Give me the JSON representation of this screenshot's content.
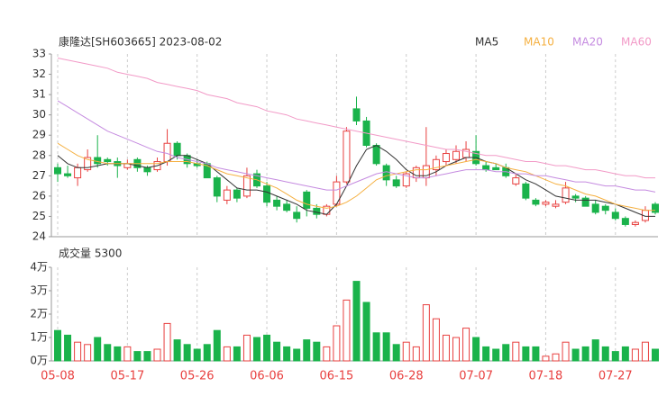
{
  "chart_data": {
    "type": "candlestick",
    "title": "康隆达[SH603665] 2023-08-02",
    "volume_title": "成交量 5300",
    "categories": [
      "05-08",
      null,
      null,
      null,
      null,
      null,
      null,
      "05-17",
      null,
      null,
      null,
      null,
      null,
      null,
      "05-26",
      null,
      null,
      null,
      null,
      null,
      null,
      "06-06",
      null,
      null,
      null,
      null,
      null,
      null,
      "06-15",
      null,
      null,
      null,
      null,
      null,
      null,
      "06-28",
      null,
      null,
      null,
      null,
      null,
      null,
      "07-07",
      null,
      null,
      null,
      null,
      null,
      null,
      "07-18",
      null,
      null,
      null,
      null,
      null,
      null,
      "07-27",
      null,
      null,
      null,
      null
    ],
    "open": [
      27.4,
      27.1,
      26.9,
      27.3,
      27.9,
      27.8,
      27.7,
      27.4,
      27.8,
      27.4,
      27.3,
      27.7,
      28.6,
      28.0,
      27.6,
      27.6,
      26.9,
      25.8,
      26.3,
      26.0,
      27.1,
      26.5,
      25.8,
      25.6,
      25.2,
      26.2,
      25.4,
      25.1,
      25.6,
      26.7,
      30.3,
      29.7,
      28.5,
      27.5,
      26.8,
      26.5,
      26.9,
      26.9,
      27.3,
      27.7,
      27.8,
      27.9,
      28.2,
      27.5,
      27.4,
      27.4,
      26.6,
      26.6,
      25.8,
      25.6,
      25.5,
      25.7,
      26.0,
      25.9,
      25.6,
      25.5,
      25.2,
      24.9,
      24.6,
      24.8,
      25.6
    ],
    "high": [
      27.6,
      27.5,
      27.6,
      28.3,
      29.0,
      27.9,
      27.9,
      27.8,
      27.9,
      27.5,
      27.9,
      29.3,
      28.7,
      28.1,
      27.8,
      27.7,
      27.0,
      26.5,
      26.4,
      27.4,
      27.3,
      26.7,
      26.0,
      25.8,
      25.5,
      26.3,
      25.6,
      25.6,
      27.0,
      29.4,
      30.9,
      29.9,
      28.6,
      27.6,
      27.0,
      27.2,
      27.5,
      29.4,
      28.0,
      28.3,
      28.5,
      28.7,
      29.0,
      27.7,
      27.6,
      27.6,
      27.1,
      26.7,
      25.9,
      25.8,
      25.8,
      26.7,
      26.1,
      26.0,
      25.8,
      25.6,
      25.4,
      25.0,
      24.8,
      25.5,
      25.7
    ],
    "low": [
      26.7,
      26.9,
      26.5,
      27.2,
      27.4,
      27.5,
      26.9,
      27.3,
      27.2,
      27.0,
      27.2,
      27.5,
      27.8,
      27.4,
      27.4,
      26.9,
      25.7,
      25.6,
      25.7,
      25.9,
      26.4,
      25.5,
      25.3,
      25.2,
      24.7,
      25.0,
      24.9,
      25.0,
      25.5,
      26.6,
      29.5,
      28.4,
      27.5,
      26.5,
      26.4,
      26.4,
      26.7,
      26.5,
      27.0,
      27.5,
      27.6,
      27.7,
      27.5,
      27.2,
      27.3,
      26.9,
      26.5,
      25.8,
      25.5,
      25.5,
      25.4,
      25.6,
      25.7,
      25.5,
      25.1,
      25.1,
      24.8,
      24.5,
      24.5,
      24.7,
      25.1
    ],
    "close": [
      27.1,
      27.0,
      27.4,
      27.9,
      27.6,
      27.7,
      27.5,
      27.6,
      27.4,
      27.2,
      27.7,
      28.6,
      28.0,
      27.6,
      27.5,
      26.9,
      26.0,
      26.3,
      25.9,
      27.0,
      26.5,
      25.7,
      25.5,
      25.3,
      24.9,
      25.4,
      25.1,
      25.5,
      26.7,
      29.2,
      29.7,
      28.5,
      27.6,
      26.8,
      26.5,
      27.1,
      27.4,
      27.5,
      27.8,
      28.1,
      28.2,
      28.3,
      27.6,
      27.3,
      27.3,
      27.0,
      26.9,
      25.9,
      25.6,
      25.7,
      25.6,
      26.4,
      25.9,
      25.5,
      25.2,
      25.3,
      24.9,
      24.6,
      24.7,
      25.3,
      25.2
    ],
    "volume": [
      1.3,
      1.1,
      0.8,
      0.7,
      1.0,
      0.7,
      0.6,
      0.6,
      0.4,
      0.4,
      0.5,
      1.6,
      0.9,
      0.7,
      0.5,
      0.7,
      1.3,
      0.6,
      0.6,
      1.1,
      1.0,
      1.1,
      0.8,
      0.6,
      0.5,
      0.9,
      0.8,
      0.6,
      1.5,
      2.6,
      3.4,
      2.5,
      1.2,
      1.2,
      0.7,
      0.8,
      0.6,
      2.4,
      1.8,
      1.1,
      1.0,
      1.4,
      1.0,
      0.6,
      0.5,
      0.7,
      0.8,
      0.6,
      0.6,
      0.2,
      0.3,
      0.8,
      0.5,
      0.6,
      0.9,
      0.6,
      0.4,
      0.6,
      0.5,
      0.8,
      0.5
    ],
    "up_color": "#e8403f",
    "down_color": "#1ab34b",
    "series": [
      {
        "name": "MA5",
        "color": "#333333",
        "values": [
          28.0,
          27.6,
          27.4,
          27.4,
          27.5,
          27.6,
          27.6,
          27.6,
          27.5,
          27.4,
          27.5,
          27.7,
          28.0,
          28.0,
          27.8,
          27.6,
          27.2,
          26.8,
          26.4,
          26.3,
          26.3,
          26.2,
          26.0,
          25.8,
          25.6,
          25.3,
          25.2,
          25.1,
          25.6,
          26.5,
          27.5,
          28.3,
          28.5,
          28.2,
          27.8,
          27.3,
          27.0,
          27.0,
          27.2,
          27.5,
          27.7,
          27.9,
          27.9,
          27.7,
          27.6,
          27.4,
          27.1,
          26.8,
          26.6,
          26.3,
          26.0,
          25.9,
          25.8,
          25.8,
          25.8,
          25.7,
          25.6,
          25.4,
          25.2,
          25.0,
          25.0
        ]
      },
      {
        "name": "MA10",
        "color": "#f5b041",
        "values": [
          28.6,
          28.3,
          28.0,
          27.8,
          27.7,
          27.6,
          27.6,
          27.6,
          27.6,
          27.6,
          27.6,
          27.7,
          27.7,
          27.7,
          27.6,
          27.5,
          27.3,
          27.1,
          27.0,
          26.9,
          26.8,
          26.6,
          26.4,
          26.1,
          25.8,
          25.6,
          25.5,
          25.4,
          25.5,
          25.7,
          26.0,
          26.4,
          26.8,
          27.0,
          27.1,
          27.2,
          27.3,
          27.3,
          27.4,
          27.5,
          27.6,
          27.7,
          27.8,
          27.7,
          27.6,
          27.4,
          27.3,
          27.2,
          27.0,
          26.8,
          26.6,
          26.5,
          26.3,
          26.1,
          26.0,
          25.8,
          25.6,
          25.5,
          25.4,
          25.3,
          25.3
        ]
      },
      {
        "name": "MA20",
        "color": "#c58be0",
        "values": [
          30.7,
          30.4,
          30.1,
          29.8,
          29.5,
          29.2,
          29.0,
          28.8,
          28.6,
          28.4,
          28.2,
          28.1,
          27.9,
          27.8,
          27.7,
          27.6,
          27.4,
          27.3,
          27.2,
          27.1,
          27.0,
          26.9,
          26.8,
          26.7,
          26.6,
          26.5,
          26.4,
          26.3,
          26.3,
          26.5,
          26.7,
          26.9,
          27.1,
          27.2,
          27.1,
          27.0,
          26.9,
          26.9,
          27.0,
          27.1,
          27.2,
          27.3,
          27.3,
          27.3,
          27.2,
          27.2,
          27.1,
          27.1,
          27.0,
          27.0,
          26.9,
          26.8,
          26.7,
          26.7,
          26.6,
          26.5,
          26.5,
          26.4,
          26.3,
          26.3,
          26.2
        ]
      },
      {
        "name": "MA60",
        "color": "#f29ac7",
        "values": [
          32.8,
          32.7,
          32.6,
          32.5,
          32.4,
          32.3,
          32.1,
          32.0,
          31.9,
          31.8,
          31.6,
          31.5,
          31.4,
          31.3,
          31.2,
          31.0,
          30.9,
          30.8,
          30.6,
          30.5,
          30.4,
          30.2,
          30.1,
          30.0,
          29.8,
          29.7,
          29.6,
          29.5,
          29.4,
          29.3,
          29.2,
          29.1,
          29.0,
          28.9,
          28.8,
          28.7,
          28.6,
          28.5,
          28.4,
          28.3,
          28.3,
          28.2,
          28.1,
          28.0,
          28.0,
          27.9,
          27.8,
          27.7,
          27.7,
          27.6,
          27.5,
          27.5,
          27.4,
          27.3,
          27.3,
          27.2,
          27.1,
          27.0,
          27.0,
          26.9,
          26.9
        ]
      }
    ],
    "ylim": [
      24,
      33
    ],
    "yticks": [
      24,
      25,
      26,
      27,
      28,
      29,
      30,
      31,
      32,
      33
    ],
    "volume_ylim": [
      0,
      4
    ],
    "volume_ticks": [
      {
        "value": 0,
        "label": "0万"
      },
      {
        "value": 1,
        "label": "1万"
      },
      {
        "value": 2,
        "label": "2万"
      },
      {
        "value": 3,
        "label": "3万"
      },
      {
        "value": 4,
        "label": "4万"
      }
    ]
  }
}
